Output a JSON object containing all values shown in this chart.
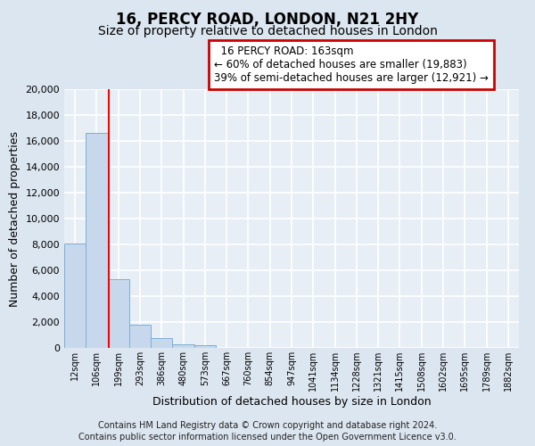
{
  "title": "16, PERCY ROAD, LONDON, N21 2HY",
  "subtitle": "Size of property relative to detached houses in London",
  "xlabel": "Distribution of detached houses by size in London",
  "ylabel": "Number of detached properties",
  "footnote1": "Contains HM Land Registry data © Crown copyright and database right 2024.",
  "footnote2": "Contains public sector information licensed under the Open Government Licence v3.0.",
  "bar_labels": [
    "12sqm",
    "106sqm",
    "199sqm",
    "293sqm",
    "386sqm",
    "480sqm",
    "573sqm",
    "667sqm",
    "760sqm",
    "854sqm",
    "947sqm",
    "1041sqm",
    "1134sqm",
    "1228sqm",
    "1321sqm",
    "1415sqm",
    "1508sqm",
    "1602sqm",
    "1695sqm",
    "1789sqm",
    "1882sqm"
  ],
  "bar_values": [
    8100,
    16600,
    5300,
    1800,
    750,
    280,
    200,
    0,
    0,
    0,
    0,
    0,
    0,
    0,
    0,
    0,
    0,
    0,
    0,
    0,
    0
  ],
  "bar_color": "#c8d8ec",
  "bar_edge_color": "#7bafd4",
  "red_line_x": 1.57,
  "annotation_title": "16 PERCY ROAD: 163sqm",
  "annotation_line1": "← 60% of detached houses are smaller (19,883)",
  "annotation_line2": "39% of semi-detached houses are larger (12,921) →",
  "annotation_box_color": "#ffffff",
  "annotation_box_edge": "#cc0000",
  "ylim": [
    0,
    20000
  ],
  "yticks": [
    0,
    2000,
    4000,
    6000,
    8000,
    10000,
    12000,
    14000,
    16000,
    18000,
    20000
  ],
  "bg_color": "#dce6f0",
  "plot_bg_color": "#e8eef6",
  "grid_color": "#ffffff",
  "title_fontsize": 12,
  "subtitle_fontsize": 10,
  "footnote_fontsize": 7
}
